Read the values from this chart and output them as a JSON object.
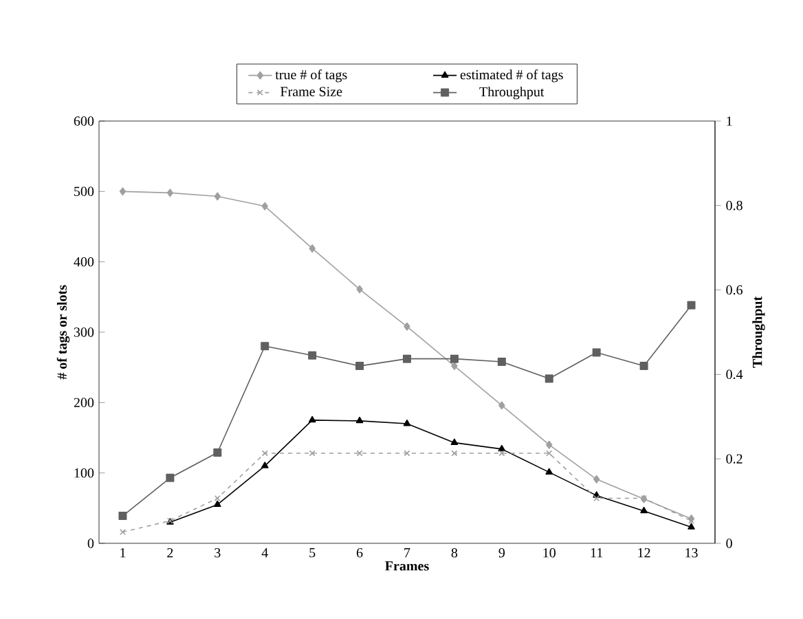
{
  "chart_data": {
    "type": "line",
    "xlabel": "Frames",
    "ylabel": "# of tags or slots",
    "y2label": "Throughput",
    "categories": [
      "1",
      "2",
      "3",
      "4",
      "5",
      "6",
      "7",
      "8",
      "9",
      "10",
      "11",
      "12",
      "13"
    ],
    "series": [
      {
        "name": "true # of tags",
        "color": "#a0a0a0",
        "marker": "diamond",
        "line_style": "solid",
        "values": [
          500,
          498,
          493,
          479,
          419,
          361,
          308,
          252,
          196,
          140,
          91,
          63,
          35
        ]
      },
      {
        "name": "estimated # of tags",
        "color": "#000000",
        "marker": "triangle",
        "line_style": "solid",
        "values": [
          null,
          30,
          55,
          110,
          175,
          174,
          170,
          143,
          134,
          101,
          68,
          46,
          23
        ]
      },
      {
        "name": "Frame Size",
        "color": "#a0a0a0",
        "marker": "cross",
        "line_style": "dashed",
        "values": [
          16,
          32,
          64,
          128,
          128,
          128,
          128,
          128,
          128,
          128,
          64,
          64,
          32
        ]
      },
      {
        "name": "Throughput",
        "color": "#606060",
        "marker": "square",
        "line_style": "solid",
        "axis": "y2",
        "values": [
          0.065,
          0.155,
          0.215,
          0.467,
          0.445,
          0.42,
          0.437,
          0.437,
          0.43,
          0.39,
          0.452,
          0.42,
          0.564
        ]
      }
    ],
    "ylim": [
      0,
      600
    ],
    "yticks": [
      0,
      100,
      200,
      300,
      400,
      500,
      600
    ],
    "y2lim": [
      0,
      1
    ],
    "y2ticks": [
      0,
      0.2,
      0.4,
      0.6,
      0.8,
      1
    ],
    "grid": false,
    "legend": "top"
  }
}
